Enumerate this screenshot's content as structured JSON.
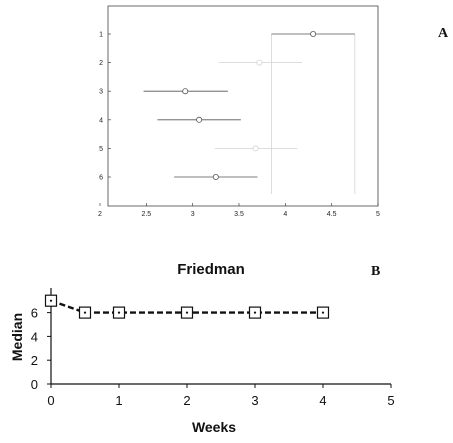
{
  "panels": {
    "a_label": "A",
    "b_label": "B"
  },
  "chart_data": [
    {
      "type": "scatter",
      "panel": "A",
      "title": "",
      "xlim": [
        2,
        5
      ],
      "xticks": [
        2,
        2.5,
        3,
        3.5,
        4,
        4.5,
        5
      ],
      "xtick_labels": [
        "2",
        "2.5",
        "3",
        "3.5",
        "4",
        "4.5",
        "5"
      ],
      "yticks": [
        1,
        2,
        3,
        4,
        5,
        6
      ],
      "ytick_labels": [
        "1",
        "2",
        "3",
        "4",
        "5",
        "6"
      ],
      "y_reversed": true,
      "grid": false,
      "colors": {
        "dark": "#555555",
        "faint": "#d4d4d4"
      },
      "groups": [
        {
          "group": 1,
          "estimate": 4.3,
          "low": 3.85,
          "high": 4.75,
          "faint": false
        },
        {
          "group": 2,
          "estimate": 3.72,
          "low": 3.28,
          "high": 4.18,
          "faint": true
        },
        {
          "group": 3,
          "estimate": 2.92,
          "low": 2.47,
          "high": 3.38,
          "faint": false
        },
        {
          "group": 4,
          "estimate": 3.07,
          "low": 2.62,
          "high": 3.52,
          "faint": false
        },
        {
          "group": 5,
          "estimate": 3.68,
          "low": 3.24,
          "high": 4.13,
          "faint": true
        },
        {
          "group": 6,
          "estimate": 3.25,
          "low": 2.8,
          "high": 3.7,
          "faint": false
        }
      ],
      "reference_lines_x": [
        3.85,
        4.75
      ]
    },
    {
      "type": "line",
      "panel": "B",
      "title": "Friedman",
      "xlabel": "Weeks",
      "ylabel": "Median",
      "xlim": [
        0,
        5
      ],
      "ylim": [
        0,
        7
      ],
      "xticks": [
        0,
        1,
        2,
        3,
        4,
        5
      ],
      "yticks": [
        0,
        2,
        4,
        6
      ],
      "grid": false,
      "line_style": "dashed",
      "marker": "square",
      "series": [
        {
          "x": [
            0,
            0.5,
            1,
            2,
            3,
            4
          ],
          "y": [
            7,
            6,
            6,
            6,
            6,
            6
          ]
        }
      ]
    }
  ]
}
